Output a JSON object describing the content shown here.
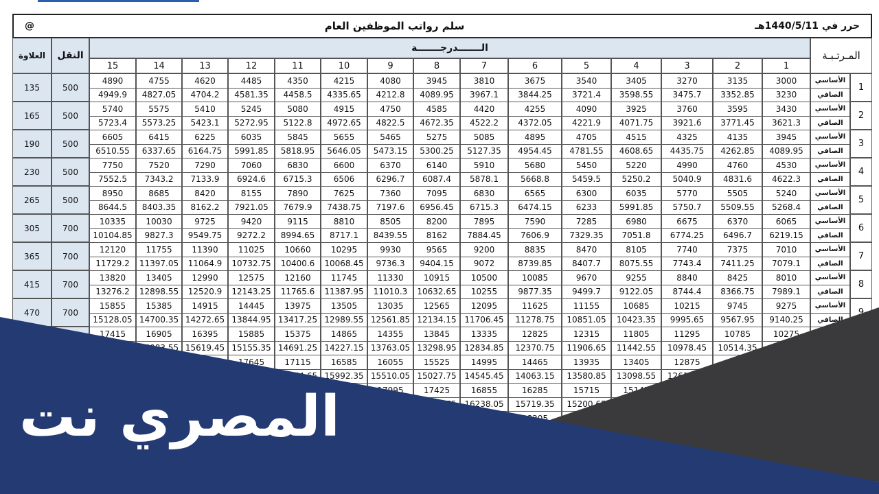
{
  "header": {
    "date": "حرر في 1440/5/11هـ",
    "title": "سلم رواتب الموظفين العام",
    "at": "@"
  },
  "table": {
    "columns": {
      "rank": "المـرتـبـة",
      "grade": "الـــــــدرجـــــــة",
      "transport": "النقل",
      "allowance": "العلاوة"
    },
    "grades": [
      "1",
      "2",
      "3",
      "4",
      "5",
      "6",
      "7",
      "8",
      "9",
      "10",
      "11",
      "12",
      "13",
      "14",
      "15"
    ],
    "row_labels": {
      "basic": "الأساسي",
      "net": "الصافي"
    },
    "rows": [
      {
        "rank": "1",
        "transport": 500,
        "allowance": 135,
        "basic": [
          3000,
          3135,
          3270,
          3405,
          3540,
          3675,
          3810,
          3945,
          4080,
          4215,
          4350,
          4485,
          4620,
          4755,
          4890
        ],
        "net": [
          3230,
          3352.85,
          3475.7,
          3598.55,
          3721.4,
          3844.25,
          3967.1,
          4089.95,
          4212.8,
          4335.65,
          4458.5,
          4581.35,
          4704.2,
          4827.05,
          4949.9
        ]
      },
      {
        "rank": "2",
        "transport": 500,
        "allowance": 165,
        "basic": [
          3430,
          3595,
          3760,
          3925,
          4090,
          4255,
          4420,
          4585,
          4750,
          4915,
          5080,
          5245,
          5410,
          5575,
          5740
        ],
        "net": [
          3621.3,
          3771.45,
          3921.6,
          4071.75,
          4221.9,
          4372.05,
          4522.2,
          4672.35,
          4822.5,
          4972.65,
          5122.8,
          5272.95,
          5423.1,
          5573.25,
          5723.4
        ]
      },
      {
        "rank": "3",
        "transport": 500,
        "allowance": 190,
        "basic": [
          3945,
          4135,
          4325,
          4515,
          4705,
          4895,
          5085,
          5275,
          5465,
          5655,
          5845,
          6035,
          6225,
          6415,
          6605
        ],
        "net": [
          4089.95,
          4262.85,
          4435.75,
          4608.65,
          4781.55,
          4954.45,
          5127.35,
          5300.25,
          5473.15,
          5646.05,
          5818.95,
          5991.85,
          6164.75,
          6337.65,
          6510.55
        ]
      },
      {
        "rank": "4",
        "transport": 500,
        "allowance": 230,
        "basic": [
          4530,
          4760,
          4990,
          5220,
          5450,
          5680,
          5910,
          6140,
          6370,
          6600,
          6830,
          7060,
          7290,
          7520,
          7750
        ],
        "net": [
          4622.3,
          4831.6,
          5040.9,
          5250.2,
          5459.5,
          5668.8,
          5878.1,
          6087.4,
          6296.7,
          6506,
          6715.3,
          6924.6,
          7133.9,
          7343.2,
          7552.5
        ]
      },
      {
        "rank": "5",
        "transport": 500,
        "allowance": 265,
        "basic": [
          5240,
          5505,
          5770,
          6035,
          6300,
          6565,
          6830,
          7095,
          7360,
          7625,
          7890,
          8155,
          8420,
          8685,
          8950
        ],
        "net": [
          5268.4,
          5509.55,
          5750.7,
          5991.85,
          6233,
          6474.15,
          6715.3,
          6956.45,
          7197.6,
          7438.75,
          7679.9,
          7921.05,
          8162.2,
          8403.35,
          8644.5
        ]
      },
      {
        "rank": "6",
        "transport": 700,
        "allowance": 305,
        "basic": [
          6065,
          6370,
          6675,
          6980,
          7285,
          7590,
          7895,
          8200,
          8505,
          8810,
          9115,
          9420,
          9725,
          10030,
          10335
        ],
        "net": [
          6219.15,
          6496.7,
          6774.25,
          7051.8,
          7329.35,
          7606.9,
          7884.45,
          8162,
          8439.55,
          8717.1,
          8994.65,
          9272.2,
          9549.75,
          9827.3,
          10104.85
        ]
      },
      {
        "rank": "7",
        "transport": 700,
        "allowance": 365,
        "basic": [
          7010,
          7375,
          7740,
          8105,
          8470,
          8835,
          9200,
          9565,
          9930,
          10295,
          10660,
          11025,
          11390,
          11755,
          12120
        ],
        "net": [
          7079.1,
          7411.25,
          7743.4,
          8075.55,
          8407.7,
          8739.85,
          9072,
          9404.15,
          9736.3,
          10068.45,
          10400.6,
          10732.75,
          11064.9,
          11397.05,
          11729.2
        ]
      },
      {
        "rank": "8",
        "transport": 700,
        "allowance": 415,
        "basic": [
          8010,
          8425,
          8840,
          9255,
          9670,
          10085,
          10500,
          10915,
          11330,
          11745,
          12160,
          12575,
          12990,
          13405,
          13820
        ],
        "net": [
          7989.1,
          8366.75,
          8744.4,
          9122.05,
          9499.7,
          9877.35,
          10255,
          10632.65,
          11010.3,
          11387.95,
          11765.6,
          12143.25,
          12520.9,
          12898.55,
          13276.2
        ]
      },
      {
        "rank": "9",
        "transport": 700,
        "allowance": 470,
        "basic": [
          9275,
          9745,
          10215,
          10685,
          11155,
          11625,
          12095,
          12565,
          13035,
          13505,
          13975,
          14445,
          14915,
          15385,
          15855
        ],
        "net": [
          9140.25,
          9567.95,
          9995.65,
          10423.35,
          10851.05,
          11278.75,
          11706.45,
          12134.15,
          12561.85,
          12989.55,
          13417.25,
          13844.95,
          14272.65,
          14700.35,
          15128.05
        ]
      },
      {
        "rank": null,
        "transport": null,
        "allowance": null,
        "basic": [
          10275,
          10785,
          11295,
          11805,
          12315,
          12825,
          13335,
          13845,
          14355,
          14865,
          15375,
          15885,
          16395,
          16905,
          17415
        ],
        "net": [
          null,
          10514.35,
          10978.45,
          11442.55,
          11906.65,
          12370.75,
          12834.85,
          13298.95,
          13763.05,
          14227.15,
          14691.25,
          15155.35,
          15619.45,
          16083.55,
          null
        ]
      },
      {
        "rank": null,
        "transport": null,
        "allowance": null,
        "basic": [
          null,
          null,
          12875,
          13405,
          13935,
          14465,
          14995,
          15525,
          16055,
          16585,
          17115,
          17645,
          null,
          null,
          null
        ],
        "net": [
          null,
          null,
          12616.25,
          13098.55,
          13580.85,
          14063.15,
          14545.45,
          15027.75,
          15510.05,
          15992.35,
          16474.65,
          null,
          null,
          null,
          null
        ]
      },
      {
        "rank": null,
        "transport": null,
        "allowance": null,
        "basic": [
          null,
          null,
          null,
          15145,
          15715,
          16285,
          16855,
          17425,
          17995,
          null,
          null,
          null,
          null,
          null,
          null
        ],
        "net": [
          null,
          null,
          null,
          null,
          15200.65,
          15719.35,
          16238.05,
          16756.75,
          null,
          null,
          null,
          null,
          null,
          null,
          null
        ]
      },
      {
        "rank": null,
        "transport": null,
        "allowance": null,
        "basic": [
          null,
          null,
          null,
          null,
          null,
          18205,
          null,
          null,
          null,
          null,
          null,
          null,
          null,
          null,
          null
        ],
        "net": [
          null,
          null,
          null,
          null,
          null,
          null,
          null,
          null,
          null,
          null,
          null,
          null,
          null,
          null,
          null
        ]
      }
    ]
  },
  "watermark": "المصري نت"
}
